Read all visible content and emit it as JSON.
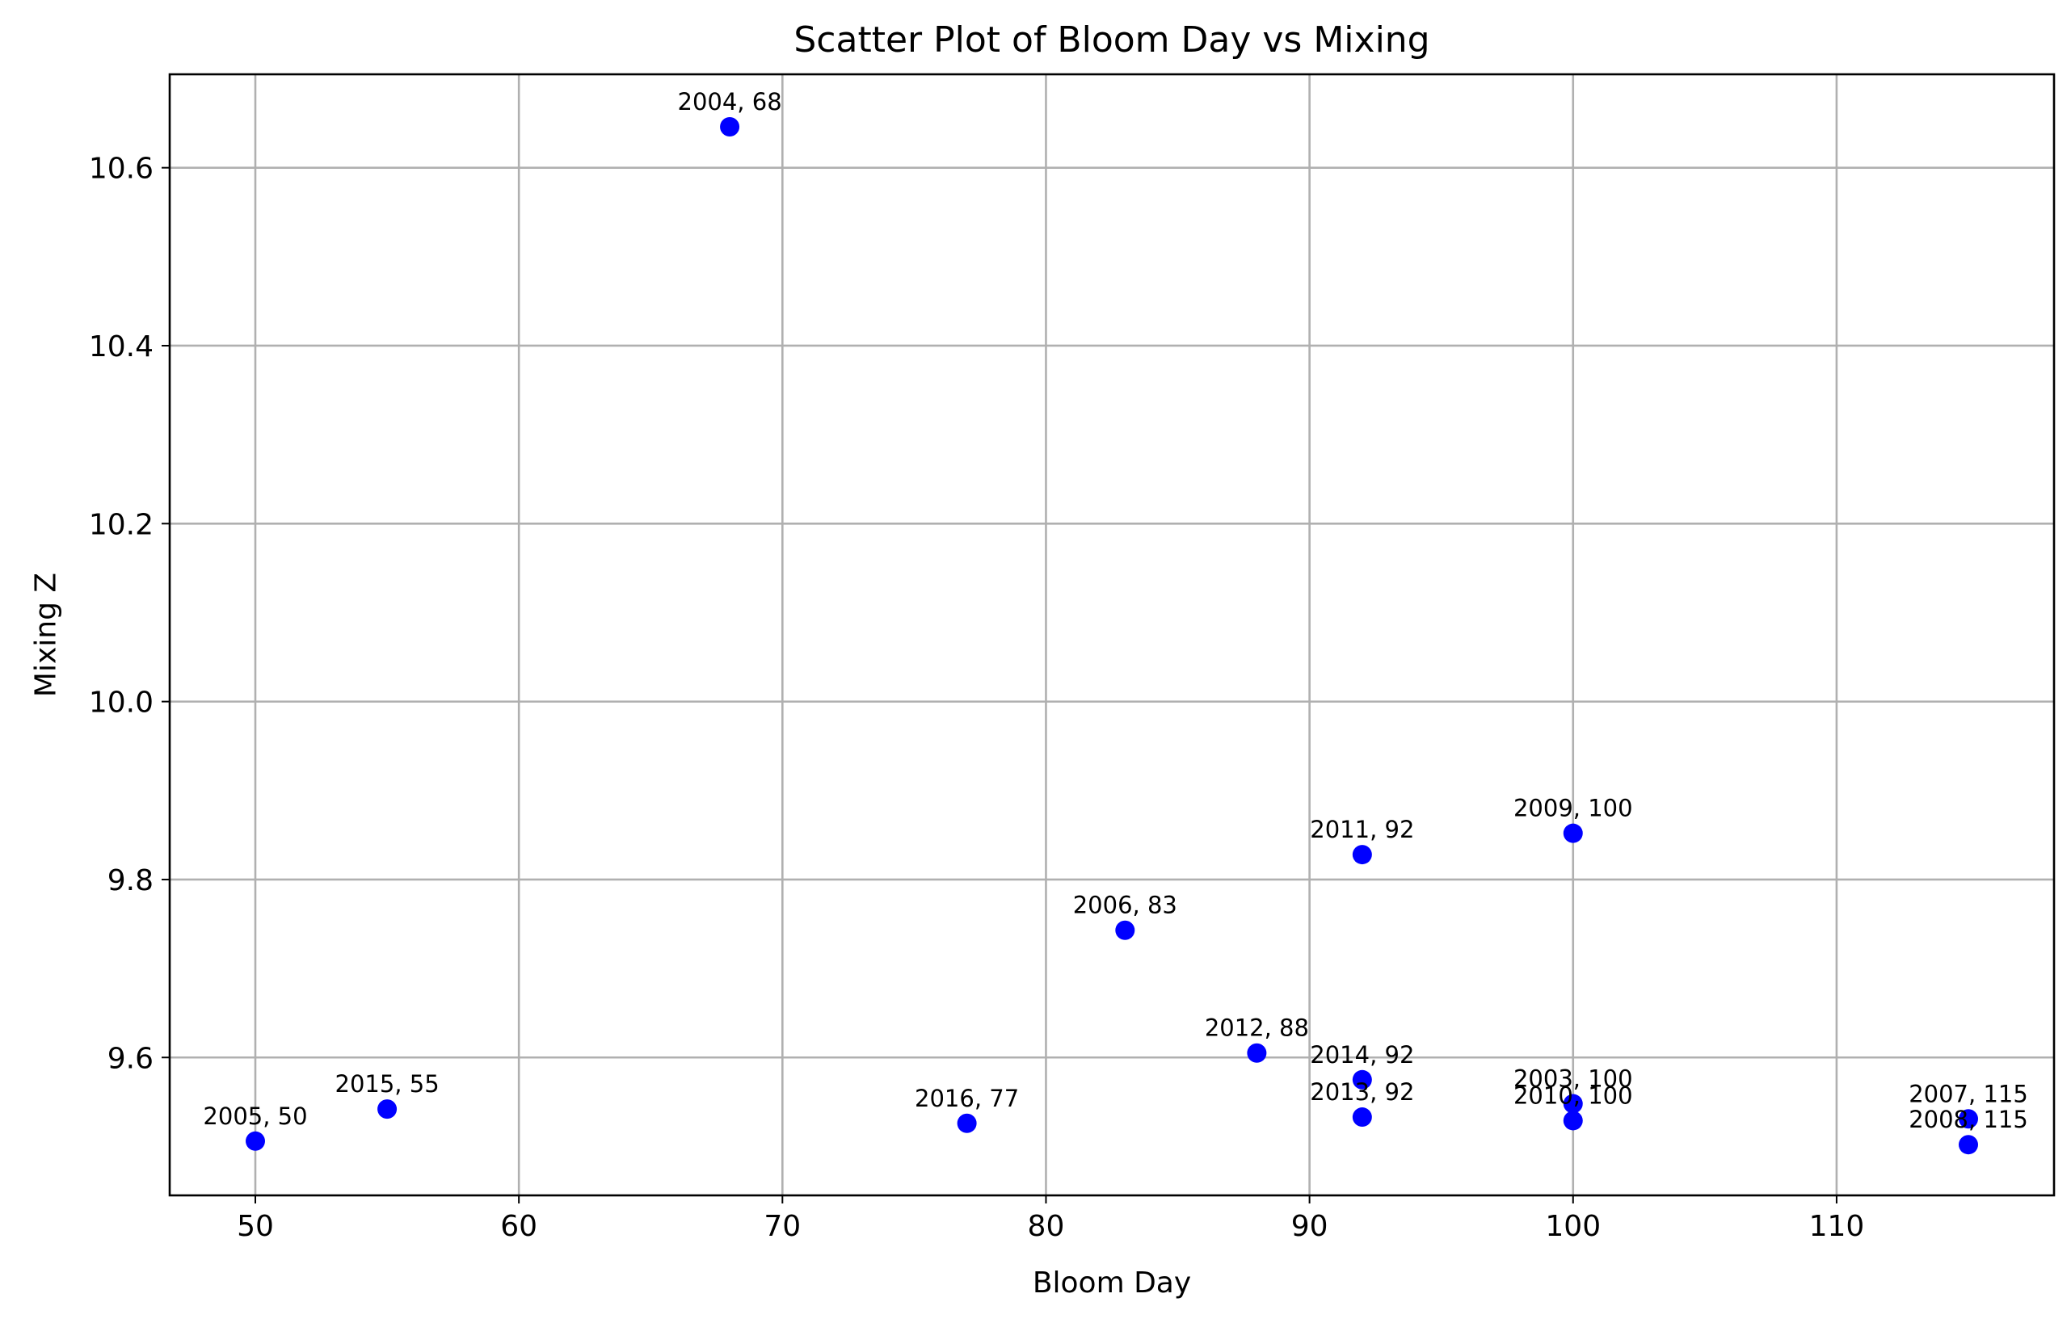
{
  "chart_data": {
    "type": "scatter",
    "title": "Scatter Plot of Bloom Day vs Mixing",
    "xlabel": "Bloom Day",
    "ylabel": "Mixing Z",
    "xlim": [
      46.75,
      118.25
    ],
    "ylim": [
      9.445,
      10.705
    ],
    "x_ticks": [
      50,
      60,
      70,
      80,
      90,
      100,
      110
    ],
    "x_tick_labels": [
      "50",
      "60",
      "70",
      "80",
      "90",
      "100",
      "110"
    ],
    "y_ticks": [
      9.6,
      9.8,
      10.0,
      10.2,
      10.4,
      10.6
    ],
    "y_tick_labels": [
      "9.6",
      "9.8",
      "10.0",
      "10.2",
      "10.4",
      "10.6"
    ],
    "grid": true,
    "marker_color": "#0000ff",
    "points": [
      {
        "x": 68,
        "y": 10.646,
        "label": "2004, 68"
      },
      {
        "x": 50,
        "y": 9.506,
        "label": "2005, 50"
      },
      {
        "x": 55,
        "y": 9.542,
        "label": "2015, 55"
      },
      {
        "x": 77,
        "y": 9.526,
        "label": "2016, 77"
      },
      {
        "x": 83,
        "y": 9.743,
        "label": "2006, 83"
      },
      {
        "x": 88,
        "y": 9.605,
        "label": "2012, 88"
      },
      {
        "x": 92,
        "y": 9.828,
        "label": "2011, 92"
      },
      {
        "x": 92,
        "y": 9.575,
        "label": "2014, 92"
      },
      {
        "x": 92,
        "y": 9.533,
        "label": "2013, 92"
      },
      {
        "x": 100,
        "y": 9.852,
        "label": "2009, 100"
      },
      {
        "x": 100,
        "y": 9.548,
        "label": "2003, 100"
      },
      {
        "x": 100,
        "y": 9.529,
        "label": "2010, 100"
      },
      {
        "x": 115,
        "y": 9.531,
        "label": "2007, 115"
      },
      {
        "x": 115,
        "y": 9.502,
        "label": "2008, 115"
      }
    ]
  }
}
